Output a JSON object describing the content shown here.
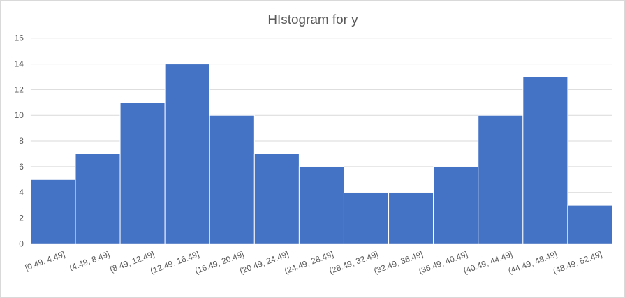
{
  "chart_data": {
    "type": "bar",
    "title": "HIstogram for y",
    "categories": [
      "[0.49, 4.49]",
      "(4.49, 8.49]",
      "(8.49, 12.49]",
      "(12.49, 16.49]",
      "(16.49, 20.49]",
      "(20.49, 24.49]",
      "(24.49, 28.49]",
      "(28.49, 32.49]",
      "(32.49, 36.49]",
      "(36.49, 40.49]",
      "(40.49, 44.49]",
      "(44.49, 48.49]",
      "(48.49, 52.49]"
    ],
    "values": [
      5,
      7,
      11,
      14,
      10,
      7,
      6,
      4,
      4,
      6,
      10,
      13,
      3
    ],
    "ylim": [
      0,
      16
    ],
    "yticks": [
      "0",
      "2",
      "4",
      "6",
      "8",
      "10",
      "12",
      "14",
      "16"
    ],
    "grid": true,
    "bar_color": "#4472c4",
    "grid_color": "#d9d9d9"
  }
}
